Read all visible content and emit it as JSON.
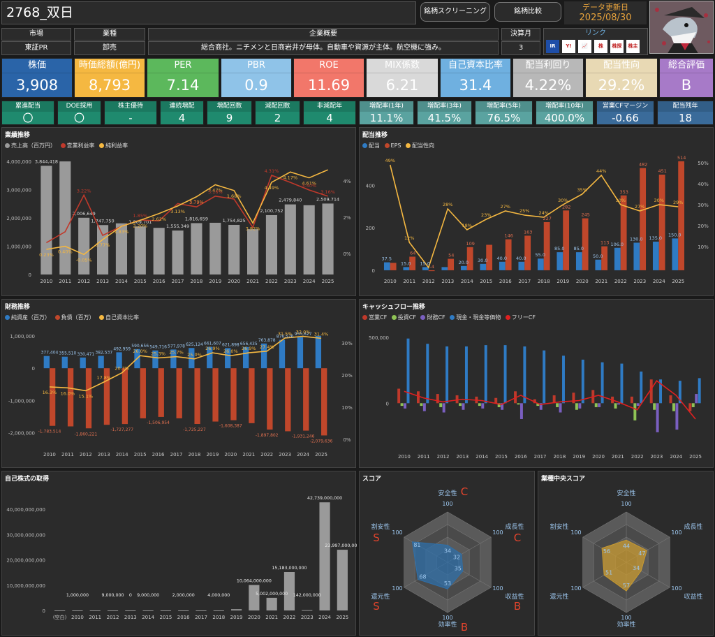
{
  "header": {
    "title": "2768_双日",
    "btn_screening": "銘柄スクリーニング",
    "btn_compare": "銘柄比較",
    "update_label": "データ更新日",
    "update_date": "2025/08/30",
    "link_label": "リンク"
  },
  "info": {
    "market_h": "市場",
    "market_v": "東証PR",
    "industry_h": "業種",
    "industry_v": "卸売",
    "summary_h": "企業概要",
    "summary_v": "総合商社。ニチメンと日商岩井が母体。自動車や資源が主体。航空機に強み。",
    "fiscal_h": "決算月",
    "fiscal_v": "3"
  },
  "links": [
    "IR",
    "Y!",
    "📈",
    "株",
    "株探",
    "株主優待"
  ],
  "kpis": [
    {
      "label": "株価",
      "value": "3,908",
      "bg": "#2a64a8",
      "fg": "#ffffff"
    },
    {
      "label": "時価総額(億円)",
      "value": "8,793",
      "bg": "#f5b841",
      "fg": "#ffffff"
    },
    {
      "label": "PER",
      "value": "7.14",
      "bg": "#5cb85c",
      "fg": "#ffffff"
    },
    {
      "label": "PBR",
      "value": "0.9",
      "bg": "#8fc3e8",
      "fg": "#ffffff"
    },
    {
      "label": "ROE",
      "value": "11.69",
      "bg": "#f2776a",
      "fg": "#ffffff"
    },
    {
      "label": "MIX係数",
      "value": "6.21",
      "bg": "#d9d9d9",
      "fg": "#ffffff"
    },
    {
      "label": "自己資本比率",
      "value": "31.4",
      "bg": "#6fb0e0",
      "fg": "#ffffff"
    },
    {
      "label": "配当利回り",
      "value": "4.22%",
      "bg": "#b8b8b8",
      "fg": "#ffffff"
    },
    {
      "label": "配当性向",
      "value": "29.2%",
      "bg": "#e8d9b4",
      "fg": "#ffffff"
    },
    {
      "label": "総合評価",
      "value": "B",
      "bg": "#a77ac8",
      "fg": "#ffffff"
    }
  ],
  "chips": [
    {
      "label": "累進配当",
      "value": "〇",
      "bg": "#1f8a6e"
    },
    {
      "label": "DOE採用",
      "value": "〇",
      "bg": "#1f8a6e"
    },
    {
      "label": "株主優待",
      "value": "-",
      "bg": "#1f8a6e"
    },
    {
      "label": "連続増配",
      "value": "4",
      "bg": "#1f8a6e"
    },
    {
      "label": "増配回数",
      "value": "9",
      "bg": "#1f8a6e"
    },
    {
      "label": "減配回数",
      "value": "2",
      "bg": "#1f8a6e"
    },
    {
      "label": "非減配年",
      "value": "4",
      "bg": "#1f8a6e"
    },
    {
      "label": "増配率(1年)",
      "value": "11.1%",
      "bg": "#5aa3a0"
    },
    {
      "label": "増配率(3年)",
      "value": "41.5%",
      "bg": "#5aa3a0"
    },
    {
      "label": "増配率(5年)",
      "value": "76.5%",
      "bg": "#5aa3a0"
    },
    {
      "label": "増配率(10年)",
      "value": "400.0%",
      "bg": "#5aa3a0"
    },
    {
      "label": "営業CFマージン",
      "value": "-0.66",
      "bg": "#3a6b9a"
    },
    {
      "label": "配当残年",
      "value": "18",
      "bg": "#3a6b9a"
    }
  ],
  "chart_data": [
    {
      "type": "bar",
      "title": "業績推移",
      "legend": [
        "売上高（百万円）",
        "営業利益率",
        "純利益率"
      ],
      "categories": [
        "2010",
        "2011",
        "2012",
        "2013",
        "2014",
        "2015",
        "2016",
        "2017",
        "2018",
        "2019",
        "2020",
        "2021",
        "2022",
        "2023",
        "2024",
        "2025"
      ],
      "series": [
        {
          "name": "売上高（百万円）",
          "values": [
            3844418,
            4000000,
            2006649,
            1747750,
            1809701,
            1700000,
            1650000,
            1555349,
            1816659,
            1830000,
            1754825,
            1602485,
            2100752,
            2479840,
            2450000,
            2509714
          ]
        },
        {
          "name": "営業利益率",
          "values": [
            0.6,
            1.2,
            3.22,
            1.0,
            1.5,
            1.85,
            1.8,
            2.75,
            2.57,
            3.16,
            3.0,
            1.44,
            4.31,
            3.92,
            3.5,
            3.16
          ]
        },
        {
          "name": "純利益率",
          "values": [
            0.23,
            0.4,
            -0.05,
            0.77,
            1.5,
            1.83,
            2.2,
            2.62,
            3.13,
            3.79,
            3.47,
            1.68,
            3.92,
            4.49,
            4.17,
            4.61
          ]
        }
      ],
      "labels": [
        "3,844,418",
        "2,006,649",
        "1,747,750",
        "1,809,701",
        "1,555,349",
        "1,816,659",
        "1,754,825",
        "2,100,752",
        "2,479,840",
        "2,509,714"
      ],
      "pct_labels": [
        "0.23%",
        "0.40%",
        "-0.05%",
        "0.77%",
        "1.83%",
        "2.20%",
        "2.62%",
        "3.13%",
        "3.79%",
        "3.47%",
        "1.68%",
        "3.92%",
        "4.49%",
        "4.17%",
        "4.61%",
        "3.22%",
        "1.85%",
        "2.75%",
        "3.16%",
        "4.31%",
        "3.50%",
        "3.16%"
      ],
      "y_ticks": [
        "4,000,000",
        "3,000,000",
        "2,000,000",
        "1,000,000",
        "0"
      ],
      "y2_ticks": [
        "4%",
        "2%",
        "0%"
      ]
    },
    {
      "type": "bar",
      "title": "配当推移",
      "legend": [
        "配当",
        "EPS",
        "配当性向"
      ],
      "categories": [
        "2010",
        "2011",
        "2012",
        "2013",
        "2014",
        "2015",
        "2016",
        "2017",
        "2018",
        "2019",
        "2020",
        "2021",
        "2022",
        "2023",
        "2024",
        "2025"
      ],
      "series": [
        {
          "name": "配当",
          "values": [
            37.5,
            15,
            15,
            15,
            20,
            30,
            40,
            40,
            55,
            85,
            85,
            50,
            106,
            130,
            135,
            150
          ]
        },
        {
          "name": "EPS",
          "values": [
            35,
            64,
            -4,
            54,
            109,
            120,
            146,
            163,
            227,
            282,
            245,
            113,
            353,
            482,
            451,
            514
          ]
        },
        {
          "name": "配当性向",
          "values": [
            49,
            12,
            0,
            28,
            18,
            23,
            27,
            25,
            24,
            30,
            35,
            44,
            30,
            27,
            30,
            29
          ]
        }
      ],
      "div_labels": [
        "37.5",
        "15.0",
        "15.0",
        "20.0",
        "30.0",
        "40.0",
        "40.0",
        "55.0",
        "85.0",
        "85.0",
        "50.0",
        "106.0",
        "130.0",
        "135.0",
        "150.0"
      ],
      "eps_labels": [
        "64",
        "-4",
        "54",
        "109",
        "146",
        "163",
        "227",
        "282",
        "245",
        "113",
        "353",
        "482",
        "451",
        "514"
      ],
      "payout_labels": [
        "49%",
        "12%",
        "28%",
        "18%",
        "23%",
        "27%",
        "25%",
        "24%",
        "30%",
        "35%",
        "44%",
        "30%",
        "27%",
        "30%",
        "29%"
      ],
      "y_ticks": [
        "400",
        "200",
        "0"
      ],
      "y2_ticks": [
        "50%",
        "40%",
        "30%",
        "20%",
        "10%"
      ]
    },
    {
      "type": "bar",
      "title": "財務推移",
      "legend": [
        "純資産（百万）",
        "負債（百万）",
        "自己資本比率"
      ],
      "categories": [
        "2010",
        "2011",
        "2012",
        "2013",
        "2014",
        "2015",
        "2016",
        "2017",
        "2018",
        "2019",
        "2020",
        "2021",
        "2022",
        "2023",
        "2024",
        "2025"
      ],
      "series": [
        {
          "name": "純資産（百万）",
          "values": [
            377404,
            355510,
            330471,
            382537,
            492959,
            590656,
            549716,
            577978,
            625124,
            661607,
            621898,
            656435,
            763878,
            876576,
            955627,
            1000000
          ]
        },
        {
          "name": "負債（百万）",
          "values": [
            -1783514,
            -1800000,
            -1860221,
            -1750000,
            -1727277,
            -1550000,
            -1506954,
            -1550000,
            -1725227,
            -1650000,
            -1608387,
            -1700000,
            -1897802,
            -1950000,
            -1931246,
            -2079636
          ]
        },
        {
          "name": "自己資本比率",
          "values": [
            16.3,
            16.0,
            15.1,
            17.8,
            20.7,
            26.0,
            25.3,
            25.7,
            25.0,
            26.9,
            26.0,
            26.9,
            27.4,
            31.5,
            32.0,
            31.4
          ]
        }
      ],
      "asset_labels": [
        "377,404",
        "355,510",
        "330,471",
        "382,537",
        "492,959",
        "590,656",
        "549,716",
        "577,978",
        "625,124",
        "661,607",
        "621,898",
        "656,435",
        "763,878",
        "876,576",
        "955,627"
      ],
      "debt_labels": [
        "-1,783,514",
        "-1,860,221",
        "-1,727,277",
        "-1,506,954",
        "-1,725,227",
        "-1,608,387",
        "-1,897,802",
        "-1,931,246",
        "-2,079,636"
      ],
      "ratio_labels": [
        "16.3%",
        "16.0%",
        "15.1%",
        "17.8%",
        "20.7%",
        "26.0%",
        "25.3%",
        "25.7%",
        "25.0%",
        "26.9%",
        "26.0%",
        "26.9%",
        "27.4%",
        "31.5%",
        "32.0%",
        "31.4%"
      ],
      "y_ticks": [
        "1,000,000",
        "0",
        "-1,000,000",
        "-2,000,000"
      ],
      "y2_ticks": [
        "30%",
        "20%",
        "10%",
        "0%"
      ]
    },
    {
      "type": "bar",
      "title": "キャッシュフロー推移",
      "legend": [
        "営業CF",
        "投資CF",
        "財務CF",
        "現金・現金等価物",
        "フリーCF"
      ],
      "categories": [
        "2010",
        "2011",
        "2012",
        "2013",
        "2014",
        "2015",
        "2016",
        "2017",
        "2018",
        "2019",
        "2020",
        "2021",
        "2022",
        "2023",
        "2024",
        "2025"
      ],
      "series": [
        {
          "name": "営業CF",
          "values": [
            110000,
            90000,
            70000,
            60000,
            50000,
            40000,
            90000,
            30000,
            60000,
            80000,
            100000,
            50000,
            50000,
            180000,
            60000,
            -60000
          ]
        },
        {
          "name": "投資CF",
          "values": [
            -20000,
            -20000,
            -30000,
            -20000,
            -20000,
            -30000,
            -10000,
            -20000,
            -30000,
            -50000,
            -30000,
            -40000,
            -130000,
            -50000,
            -60000,
            -30000
          ]
        },
        {
          "name": "財務CF",
          "values": [
            -40000,
            -60000,
            -70000,
            -50000,
            -40000,
            -50000,
            -120000,
            -50000,
            -70000,
            -40000,
            -30000,
            -10000,
            -20000,
            -220000,
            -200000,
            70000
          ]
        },
        {
          "name": "現金・現金等価物",
          "values": [
            490000,
            450000,
            430000,
            430000,
            440000,
            440000,
            430000,
            400000,
            360000,
            330000,
            310000,
            300000,
            240000,
            180000,
            170000,
            190000
          ]
        },
        {
          "name": "フリーCF",
          "values": [
            90000,
            40000,
            10000,
            30000,
            20000,
            -10000,
            60000,
            -10000,
            10000,
            20000,
            60000,
            10000,
            -50000,
            170000,
            60000,
            -120000
          ]
        }
      ],
      "y_ticks": [
        "500,000",
        "0"
      ]
    },
    {
      "type": "bar",
      "title": "自己株式の取得",
      "categories": [
        "(空白)",
        "2010",
        "2011",
        "2012",
        "2013",
        "2014",
        "2015",
        "2016",
        "2017",
        "2018",
        "2019",
        "2020",
        "2021",
        "2022",
        "2023",
        "2024",
        "2025"
      ],
      "values": [
        0,
        1000000,
        0,
        9000000,
        0,
        9000000,
        0,
        2000000,
        0,
        4000000,
        500000000,
        10064000000,
        5002000000,
        15183000000,
        142000000,
        42739000000,
        23997000000
      ],
      "labels": [
        "1,000,000",
        "9,000,000",
        "0",
        "9,000,000",
        "2,000,000",
        "4,000,000",
        "10,064,000,000",
        "5,002,000,000",
        "15,183,000,000",
        "142,000,000",
        "42,739,000,000",
        "23,997,000,000"
      ],
      "y_ticks": [
        "40,000,000,000",
        "30,000,000,000",
        "20,000,000,000",
        "10,000,000,000",
        "0"
      ]
    },
    {
      "type": "radar",
      "title": "スコア",
      "axes": [
        "安全性",
        "成長性",
        "収益性",
        "効率性",
        "還元性",
        "割安性"
      ],
      "max": "100",
      "values": [
        34,
        32,
        35,
        53,
        68,
        81
      ],
      "grades": [
        "C",
        "C",
        "B",
        "B",
        "S",
        "S"
      ]
    },
    {
      "type": "radar",
      "title": "業種中央スコア",
      "axes": [
        "安全性",
        "成長性",
        "収益性",
        "効率性",
        "還元性",
        "割安性"
      ],
      "max": "100",
      "values": [
        44,
        47,
        34,
        57,
        51,
        56
      ]
    }
  ]
}
